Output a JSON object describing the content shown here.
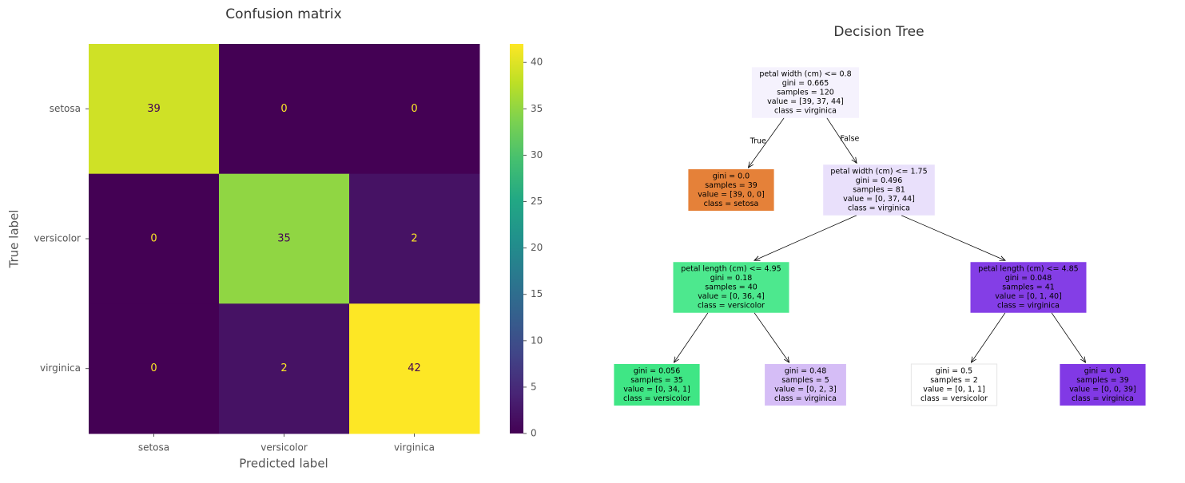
{
  "chart_data": [
    {
      "type": "heatmap",
      "title": "Confusion matrix",
      "x_label": "Predicted label",
      "y_label": "True label",
      "x_categories": [
        "setosa",
        "versicolor",
        "virginica"
      ],
      "y_categories": [
        "setosa",
        "versicolor",
        "virginica"
      ],
      "values": [
        [
          39,
          0,
          0
        ],
        [
          0,
          35,
          2
        ],
        [
          0,
          2,
          42
        ]
      ],
      "colormap": "viridis",
      "clim": [
        0,
        42
      ],
      "colorbar_ticks": [
        0,
        5,
        10,
        15,
        20,
        25,
        30,
        35,
        40
      ]
    },
    {
      "type": "tree",
      "title": "Decision Tree",
      "nodes": [
        {
          "lines": [
            "petal width (cm) <= 0.8",
            "gini = 0.665",
            "samples = 120",
            "value = [39, 37, 44]",
            "class = virginica"
          ],
          "color": "#f5f2fd"
        },
        {
          "lines": [
            "gini = 0.0",
            "samples = 39",
            "value = [39, 0, 0]",
            "class = setosa"
          ],
          "color": "#e58139"
        },
        {
          "lines": [
            "petal width (cm) <= 1.75",
            "gini = 0.496",
            "samples = 81",
            "value = [0, 37, 44]",
            "class = virginica"
          ],
          "color": "#e9e0fb"
        },
        {
          "lines": [
            "petal length (cm) <= 4.95",
            "gini = 0.18",
            "samples = 40",
            "value = [0, 36, 4]",
            "class = versicolor"
          ],
          "color": "#4de88e"
        },
        {
          "lines": [
            "petal length (cm) <= 4.85",
            "gini = 0.048",
            "samples = 41",
            "value = [0, 1, 40]",
            "class = virginica"
          ],
          "color": "#843ee6"
        },
        {
          "lines": [
            "gini = 0.056",
            "samples = 35",
            "value = [0, 34, 1]",
            "class = versicolor"
          ],
          "color": "#3fe685"
        },
        {
          "lines": [
            "gini = 0.48",
            "samples = 5",
            "value = [0, 2, 3]",
            "class = virginica"
          ],
          "color": "#d5bdf6"
        },
        {
          "lines": [
            "gini = 0.5",
            "samples = 2",
            "value = [0, 1, 1]",
            "class = versicolor"
          ],
          "color": "#ffffff"
        },
        {
          "lines": [
            "gini = 0.0",
            "samples = 39",
            "value = [0, 0, 39]",
            "class = virginica"
          ],
          "color": "#8139e5"
        }
      ],
      "edges": [
        {
          "from": 0,
          "to": 1,
          "label": "True"
        },
        {
          "from": 0,
          "to": 2,
          "label": "False"
        },
        {
          "from": 2,
          "to": 3
        },
        {
          "from": 2,
          "to": 4
        },
        {
          "from": 3,
          "to": 5
        },
        {
          "from": 3,
          "to": 6
        },
        {
          "from": 4,
          "to": 7
        },
        {
          "from": 4,
          "to": 8
        }
      ]
    }
  ]
}
